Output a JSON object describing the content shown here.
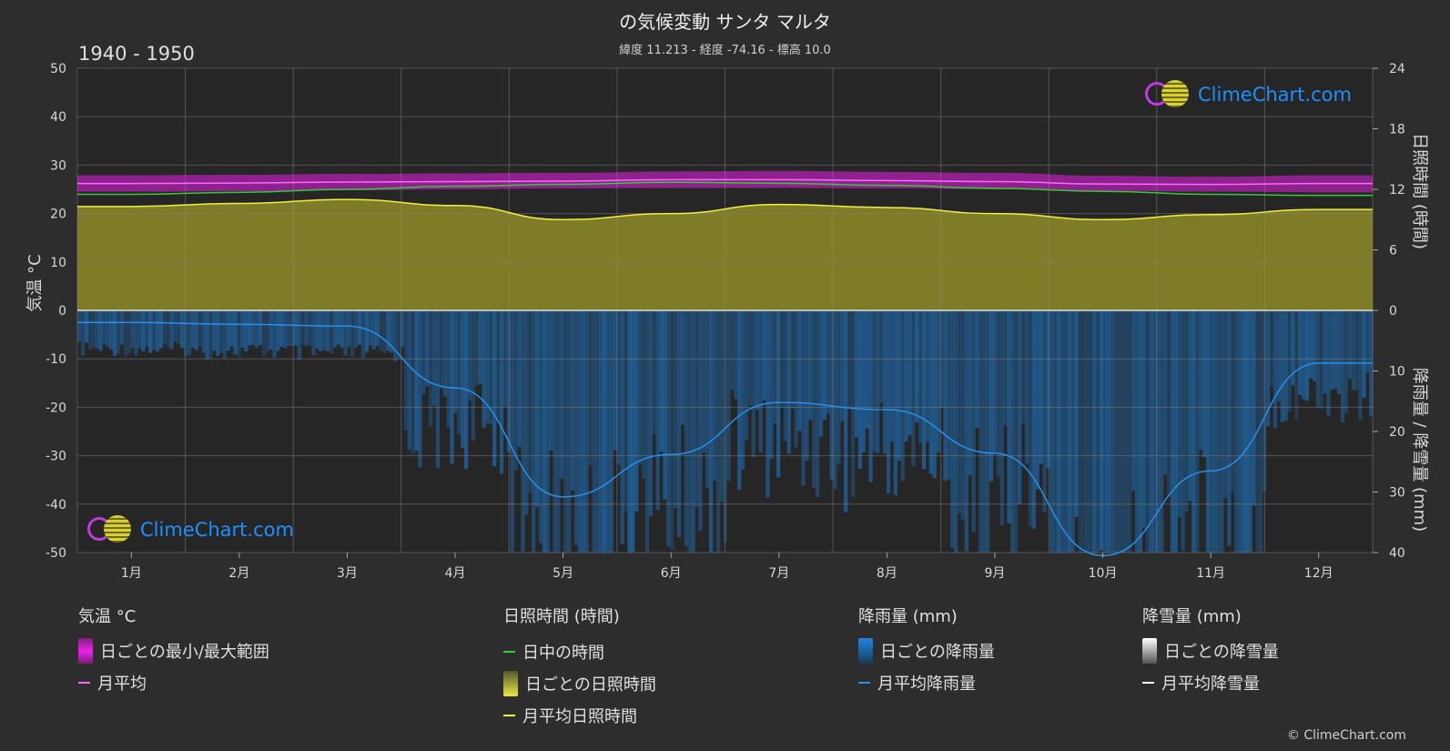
{
  "header": {
    "title": "の気候変動 サンタ マルタ",
    "subtitle": "緯度 11.213 - 経度 -74.16 - 標高 10.0",
    "period": "1940 - 1950"
  },
  "logo_text": "ClimeChart.com",
  "copyright": "© ClimeChart.com",
  "colors": {
    "background": "#2d2d2d",
    "temp_range": "#e61ee6",
    "temp_mean": "#ff66ff",
    "daylight": "#33cc33",
    "sunshine": "#e0e040",
    "sunshine_mean": "#f0f040",
    "rain": "#1e78c8",
    "rain_mean": "#2a8fe8",
    "snow_mean": "#ffffff"
  },
  "chart_data": {
    "type": "area",
    "months": [
      "1月",
      "2月",
      "3月",
      "4月",
      "5月",
      "6月",
      "7月",
      "8月",
      "9月",
      "10月",
      "11月",
      "12月"
    ],
    "left_axis": {
      "label": "気温 °C",
      "range": [
        -50,
        50
      ],
      "ticks": [
        50,
        40,
        30,
        20,
        10,
        0,
        -10,
        -20,
        -30,
        -40,
        -50
      ]
    },
    "right_axis_sun": {
      "label": "日照時間 (時間)",
      "range": [
        0,
        24
      ],
      "ticks": [
        24,
        18,
        12,
        6,
        0
      ]
    },
    "right_axis_rain": {
      "label": "降雨量 / 降雪量 (mm)",
      "range": [
        0,
        40
      ],
      "ticks": [
        0,
        10,
        20,
        30,
        40
      ]
    },
    "series": [
      {
        "name": "月平均",
        "unit": "°C",
        "values": [
          26.2,
          26.3,
          26.5,
          26.6,
          26.7,
          27.0,
          27.0,
          26.8,
          26.6,
          26.1,
          26.0,
          26.2
        ]
      },
      {
        "name": "日ごとの最小/最大範囲",
        "unit": "°C",
        "min": [
          24.5,
          24.6,
          24.8,
          25.0,
          25.2,
          25.3,
          25.3,
          25.2,
          25.0,
          24.7,
          24.5,
          24.4
        ],
        "max": [
          27.9,
          28.0,
          28.2,
          28.3,
          28.4,
          28.7,
          28.8,
          28.6,
          28.4,
          27.8,
          27.6,
          27.9
        ]
      },
      {
        "name": "日中の時間",
        "unit": "時間",
        "values": [
          11.5,
          11.7,
          12.0,
          12.3,
          12.5,
          12.7,
          12.6,
          12.4,
          12.1,
          11.8,
          11.5,
          11.4
        ]
      },
      {
        "name": "月平均日照時間",
        "unit": "時間",
        "values": [
          10.3,
          10.6,
          11.0,
          10.4,
          9.0,
          9.6,
          10.5,
          10.2,
          9.6,
          9.0,
          9.5,
          10.0
        ]
      },
      {
        "name": "月平均降雨量",
        "unit": "mm",
        "values": [
          2.0,
          2.3,
          2.6,
          12.8,
          30.8,
          23.8,
          15.2,
          16.4,
          23.6,
          40.5,
          26.5,
          8.7
        ]
      },
      {
        "name": "月平均降雪量",
        "unit": "mm",
        "values": [
          0,
          0,
          0,
          0,
          0,
          0,
          0,
          0,
          0,
          0,
          0,
          0
        ]
      }
    ],
    "grid": true
  },
  "legend": {
    "temp": {
      "title": "気温 °C",
      "range": "日ごとの最小/最大範囲",
      "mean": "月平均"
    },
    "sun": {
      "title": "日照時間 (時間)",
      "daylight": "日中の時間",
      "daily": "日ごとの日照時間",
      "mean": "月平均日照時間"
    },
    "rain": {
      "title": "降雨量 (mm)",
      "daily": "日ごとの降雨量",
      "mean": "月平均降雨量"
    },
    "snow": {
      "title": "降雪量 (mm)",
      "daily": "日ごとの降雪量",
      "mean": "月平均降雪量"
    }
  }
}
